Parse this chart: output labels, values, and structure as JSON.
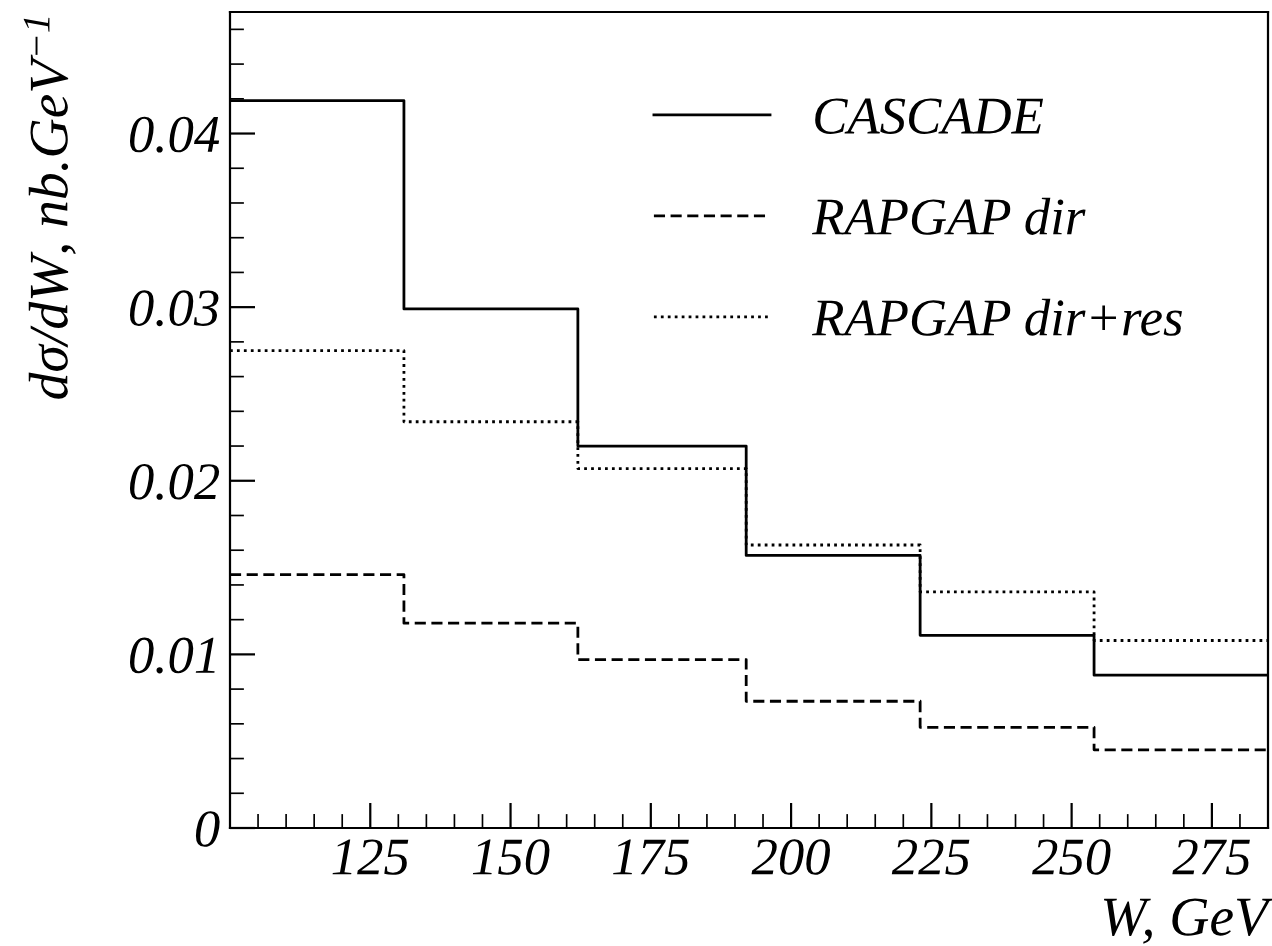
{
  "chart_data": {
    "type": "step",
    "xlabel": "W, GeV",
    "ylabel": "dσ/dW, nb.GeV$^{−1}$",
    "x": [
      100,
      131,
      162,
      192,
      223,
      254,
      285
    ],
    "series": [
      {
        "name": "CASCADE",
        "color": "#000000",
        "line_style": "solid",
        "values": [
          0.0419,
          0.0299,
          0.022,
          0.0157,
          0.0111,
          0.0088,
          0.0088
        ]
      },
      {
        "name": "RAPGAP dir",
        "color": "#000000",
        "line_style": "dashed",
        "values": [
          0.0146,
          0.0118,
          0.0097,
          0.0073,
          0.0058,
          0.0045,
          0.0045
        ]
      },
      {
        "name": "RAPGAP dir+res",
        "color": "#000000",
        "line_style": "dotted",
        "values": [
          0.0275,
          0.0234,
          0.0207,
          0.0163,
          0.0136,
          0.0108,
          0.0108
        ]
      }
    ],
    "xlim": [
      100,
      285
    ],
    "ylim": [
      0,
      0.047
    ],
    "xticks": [
      125,
      150,
      175,
      200,
      225,
      250,
      275
    ],
    "yticks": [
      0,
      0.01,
      0.02,
      0.03,
      0.04
    ],
    "grid": false,
    "legend": "top right"
  }
}
